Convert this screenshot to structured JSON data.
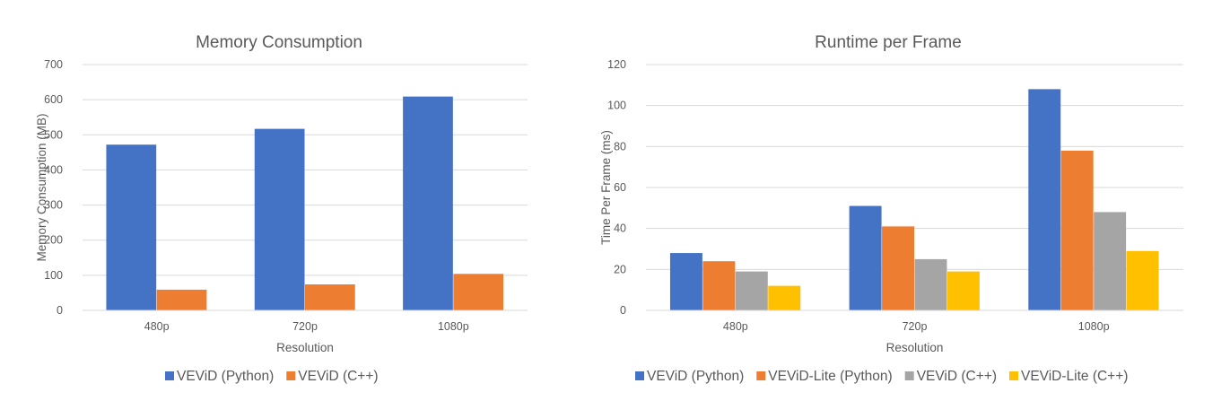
{
  "chart_data": [
    {
      "type": "bar",
      "title": "Memory Consumption",
      "xlabel": "Resolution",
      "ylabel": "Memory Consumption (MB)",
      "categories": [
        "480p",
        "720p",
        "1080p"
      ],
      "ylim": [
        0,
        700
      ],
      "yticks": [
        0,
        100,
        200,
        300,
        400,
        500,
        600,
        700
      ],
      "grid": true,
      "legend_position": "bottom",
      "series": [
        {
          "name": "VEViD (Python)",
          "color": "#4472C4",
          "values": [
            472,
            517,
            609
          ]
        },
        {
          "name": "VEViD (C++)",
          "color": "#ED7D31",
          "values": [
            59,
            74,
            104
          ]
        }
      ]
    },
    {
      "type": "bar",
      "title": "Runtime per Frame",
      "xlabel": "Resolution",
      "ylabel": "Time Per Frame (ms)",
      "categories": [
        "480p",
        "720p",
        "1080p"
      ],
      "ylim": [
        0,
        120
      ],
      "yticks": [
        0,
        20,
        40,
        60,
        80,
        100,
        120
      ],
      "grid": true,
      "legend_position": "bottom",
      "series": [
        {
          "name": "VEViD (Python)",
          "color": "#4472C4",
          "values": [
            28,
            51,
            108
          ]
        },
        {
          "name": "VEViD-Lite (Python)",
          "color": "#ED7D31",
          "values": [
            24,
            41,
            78
          ]
        },
        {
          "name": "VEViD (C++)",
          "color": "#A5A5A5",
          "values": [
            19,
            25,
            48
          ]
        },
        {
          "name": "VEViD-Lite (C++)",
          "color": "#FFC000",
          "values": [
            12,
            19,
            29
          ]
        }
      ]
    }
  ]
}
